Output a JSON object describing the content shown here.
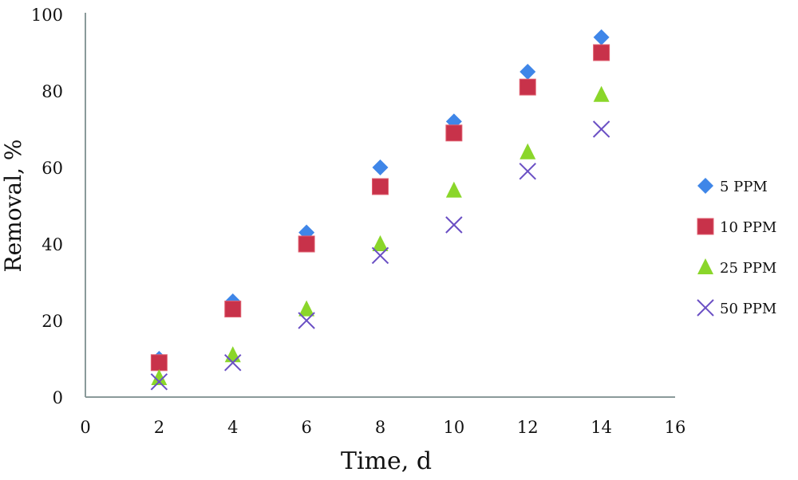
{
  "chart_data": {
    "type": "scatter",
    "title": "",
    "xlabel": "Time, d",
    "ylabel": "Removal, %",
    "xlim": [
      0,
      16
    ],
    "ylim": [
      0,
      100
    ],
    "xticks": [
      0,
      2,
      4,
      6,
      8,
      10,
      12,
      14,
      16
    ],
    "yticks": [
      0,
      20,
      40,
      60,
      80,
      100
    ],
    "grid": false,
    "legend": "right",
    "x": [
      2,
      4,
      6,
      8,
      10,
      12,
      14
    ],
    "series": [
      {
        "name": "5 PPM",
        "marker": "diamond",
        "color": "#3f86e8",
        "values": [
          10,
          25,
          43,
          60,
          72,
          85,
          94
        ]
      },
      {
        "name": "10 PPM",
        "marker": "square",
        "color": "#c8324a",
        "values": [
          9,
          23,
          40,
          55,
          69,
          81,
          90
        ]
      },
      {
        "name": "25 PPM",
        "marker": "triangle",
        "color": "#8ad62a",
        "values": [
          5,
          11,
          23,
          40,
          54,
          64,
          79
        ]
      },
      {
        "name": "50 PPM",
        "marker": "x",
        "color": "#6a4fc4",
        "values": [
          4,
          9,
          20,
          37,
          45,
          59,
          70
        ]
      }
    ]
  }
}
